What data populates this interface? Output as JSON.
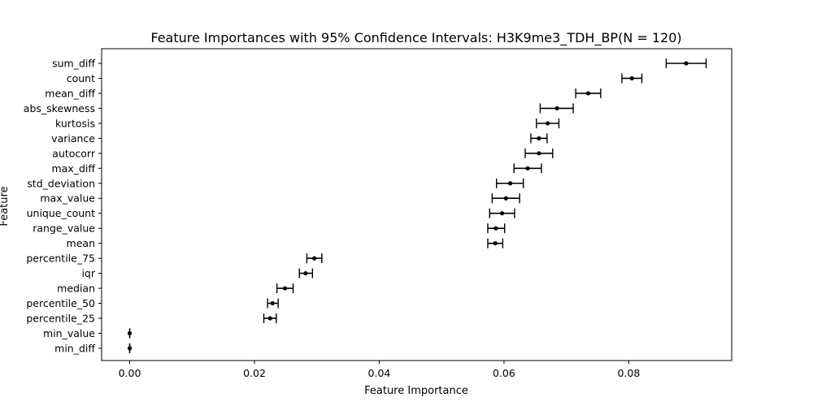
{
  "chart_data": {
    "type": "scatter",
    "title": "Feature Importances with 95% Confidence Intervals: H3K9me3_TDH_BP(N = 120)",
    "xlabel": "Feature Importance",
    "ylabel": "Feature",
    "xlim": [
      -0.0045,
      0.0965
    ],
    "xticks": [
      0.0,
      0.02,
      0.04,
      0.06,
      0.08
    ],
    "xtick_labels": [
      "0.00",
      "0.02",
      "0.04",
      "0.06",
      "0.08"
    ],
    "grid": false,
    "features": [
      {
        "name": "sum_diff",
        "value": 0.0892,
        "low": 0.086,
        "high": 0.0924
      },
      {
        "name": "count",
        "value": 0.0805,
        "low": 0.0789,
        "high": 0.0821
      },
      {
        "name": "mean_diff",
        "value": 0.0735,
        "low": 0.0715,
        "high": 0.0755
      },
      {
        "name": "abs_skewness",
        "value": 0.0685,
        "low": 0.0658,
        "high": 0.0711
      },
      {
        "name": "kurtosis",
        "value": 0.067,
        "low": 0.0652,
        "high": 0.0688
      },
      {
        "name": "variance",
        "value": 0.0656,
        "low": 0.0643,
        "high": 0.0669
      },
      {
        "name": "autocorr",
        "value": 0.0656,
        "low": 0.0634,
        "high": 0.0678
      },
      {
        "name": "max_diff",
        "value": 0.0638,
        "low": 0.0616,
        "high": 0.066
      },
      {
        "name": "std_deviation",
        "value": 0.061,
        "low": 0.0588,
        "high": 0.0631
      },
      {
        "name": "max_value",
        "value": 0.0603,
        "low": 0.0581,
        "high": 0.0625
      },
      {
        "name": "unique_count",
        "value": 0.0597,
        "low": 0.0577,
        "high": 0.0617
      },
      {
        "name": "range_value",
        "value": 0.0587,
        "low": 0.0574,
        "high": 0.0601
      },
      {
        "name": "mean",
        "value": 0.0586,
        "low": 0.0574,
        "high": 0.0598
      },
      {
        "name": "percentile_75",
        "value": 0.0296,
        "low": 0.0284,
        "high": 0.0308
      },
      {
        "name": "iqr",
        "value": 0.0282,
        "low": 0.0272,
        "high": 0.0293
      },
      {
        "name": "median",
        "value": 0.0249,
        "low": 0.0236,
        "high": 0.0262
      },
      {
        "name": "percentile_50",
        "value": 0.0229,
        "low": 0.0221,
        "high": 0.0238
      },
      {
        "name": "percentile_25",
        "value": 0.0225,
        "low": 0.0215,
        "high": 0.0235
      },
      {
        "name": "min_value",
        "value": 0.0,
        "low": 0.0,
        "high": 0.0
      },
      {
        "name": "min_diff",
        "value": 0.0,
        "low": 0.0,
        "high": 0.0
      }
    ]
  }
}
